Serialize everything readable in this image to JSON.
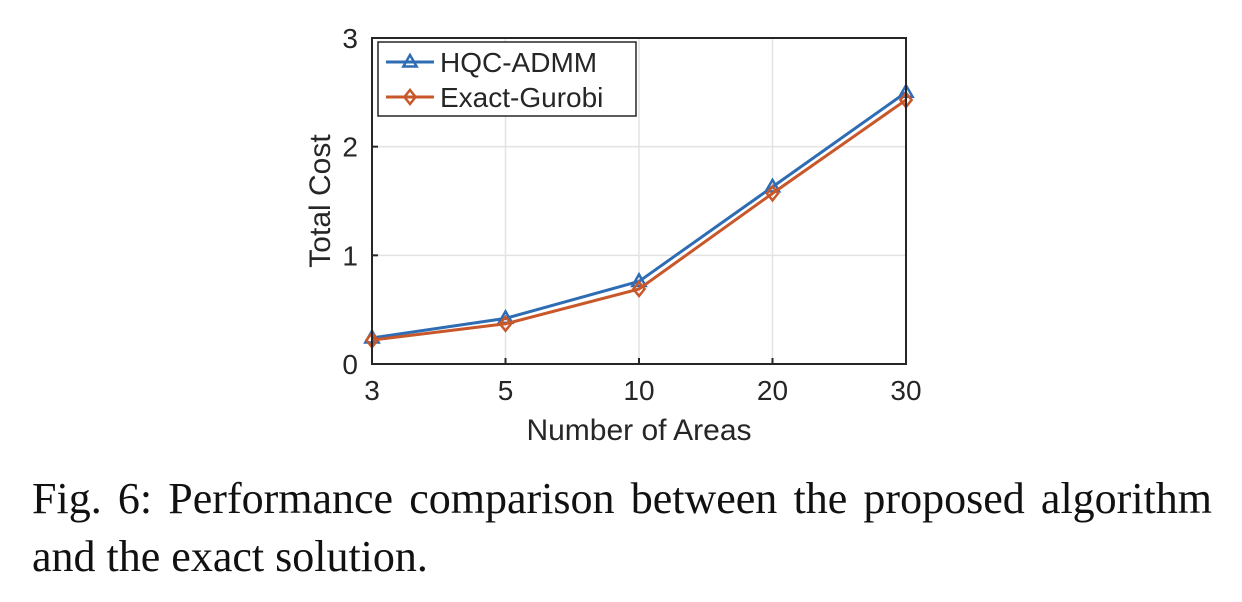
{
  "chart_data": {
    "type": "line",
    "xlabel": "Number of Areas",
    "ylabel": "Total Cost",
    "categories": [
      "3",
      "5",
      "10",
      "20",
      "30"
    ],
    "yticks": [
      "0",
      "1",
      "2",
      "3"
    ],
    "ylim": [
      0,
      3
    ],
    "grid": true,
    "legend_position": "top-left",
    "series": [
      {
        "name": "HQC-ADMM",
        "values": [
          0.24,
          0.42,
          0.76,
          1.63,
          2.5
        ],
        "color": "#2E6DB4",
        "marker": "triangle"
      },
      {
        "name": "Exact-Gurobi",
        "values": [
          0.22,
          0.37,
          0.69,
          1.57,
          2.43
        ],
        "color": "#C8572A",
        "marker": "diamond"
      }
    ]
  },
  "caption": "Fig. 6: Performance comparison between the proposed algorithm and the exact solution."
}
